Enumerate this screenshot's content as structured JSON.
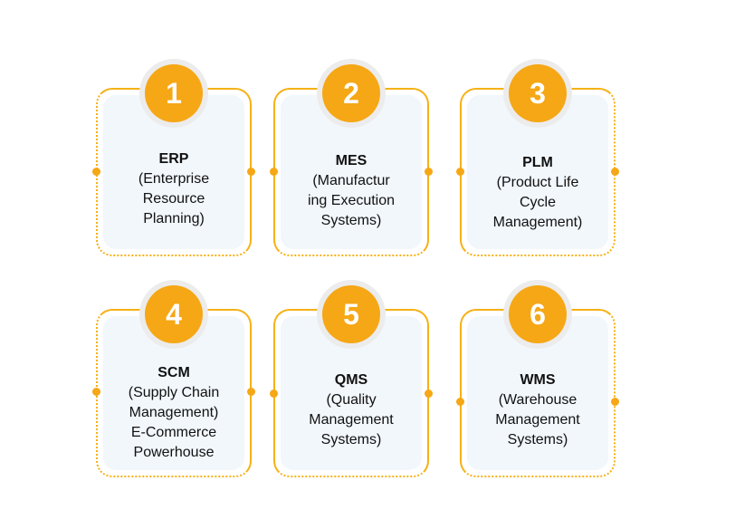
{
  "accent_color": "#f6a715",
  "cards": [
    {
      "number": "1",
      "title": "ERP",
      "description": "(Enterprise\nResource\nPlanning)"
    },
    {
      "number": "2",
      "title": "MES",
      "description": "(Manufactur\ning Execution\nSystems)"
    },
    {
      "number": "3",
      "title": "PLM",
      "description": "(Product Life\nCycle\nManagement)"
    },
    {
      "number": "4",
      "title": "SCM",
      "description": "(Supply Chain\nManagement)\nE-Commerce\nPowerhouse"
    },
    {
      "number": "5",
      "title": "QMS",
      "description": "(Quality\nManagement\nSystems)"
    },
    {
      "number": "6",
      "title": "WMS",
      "description": "(Warehouse\nManagement\nSystems)"
    }
  ]
}
